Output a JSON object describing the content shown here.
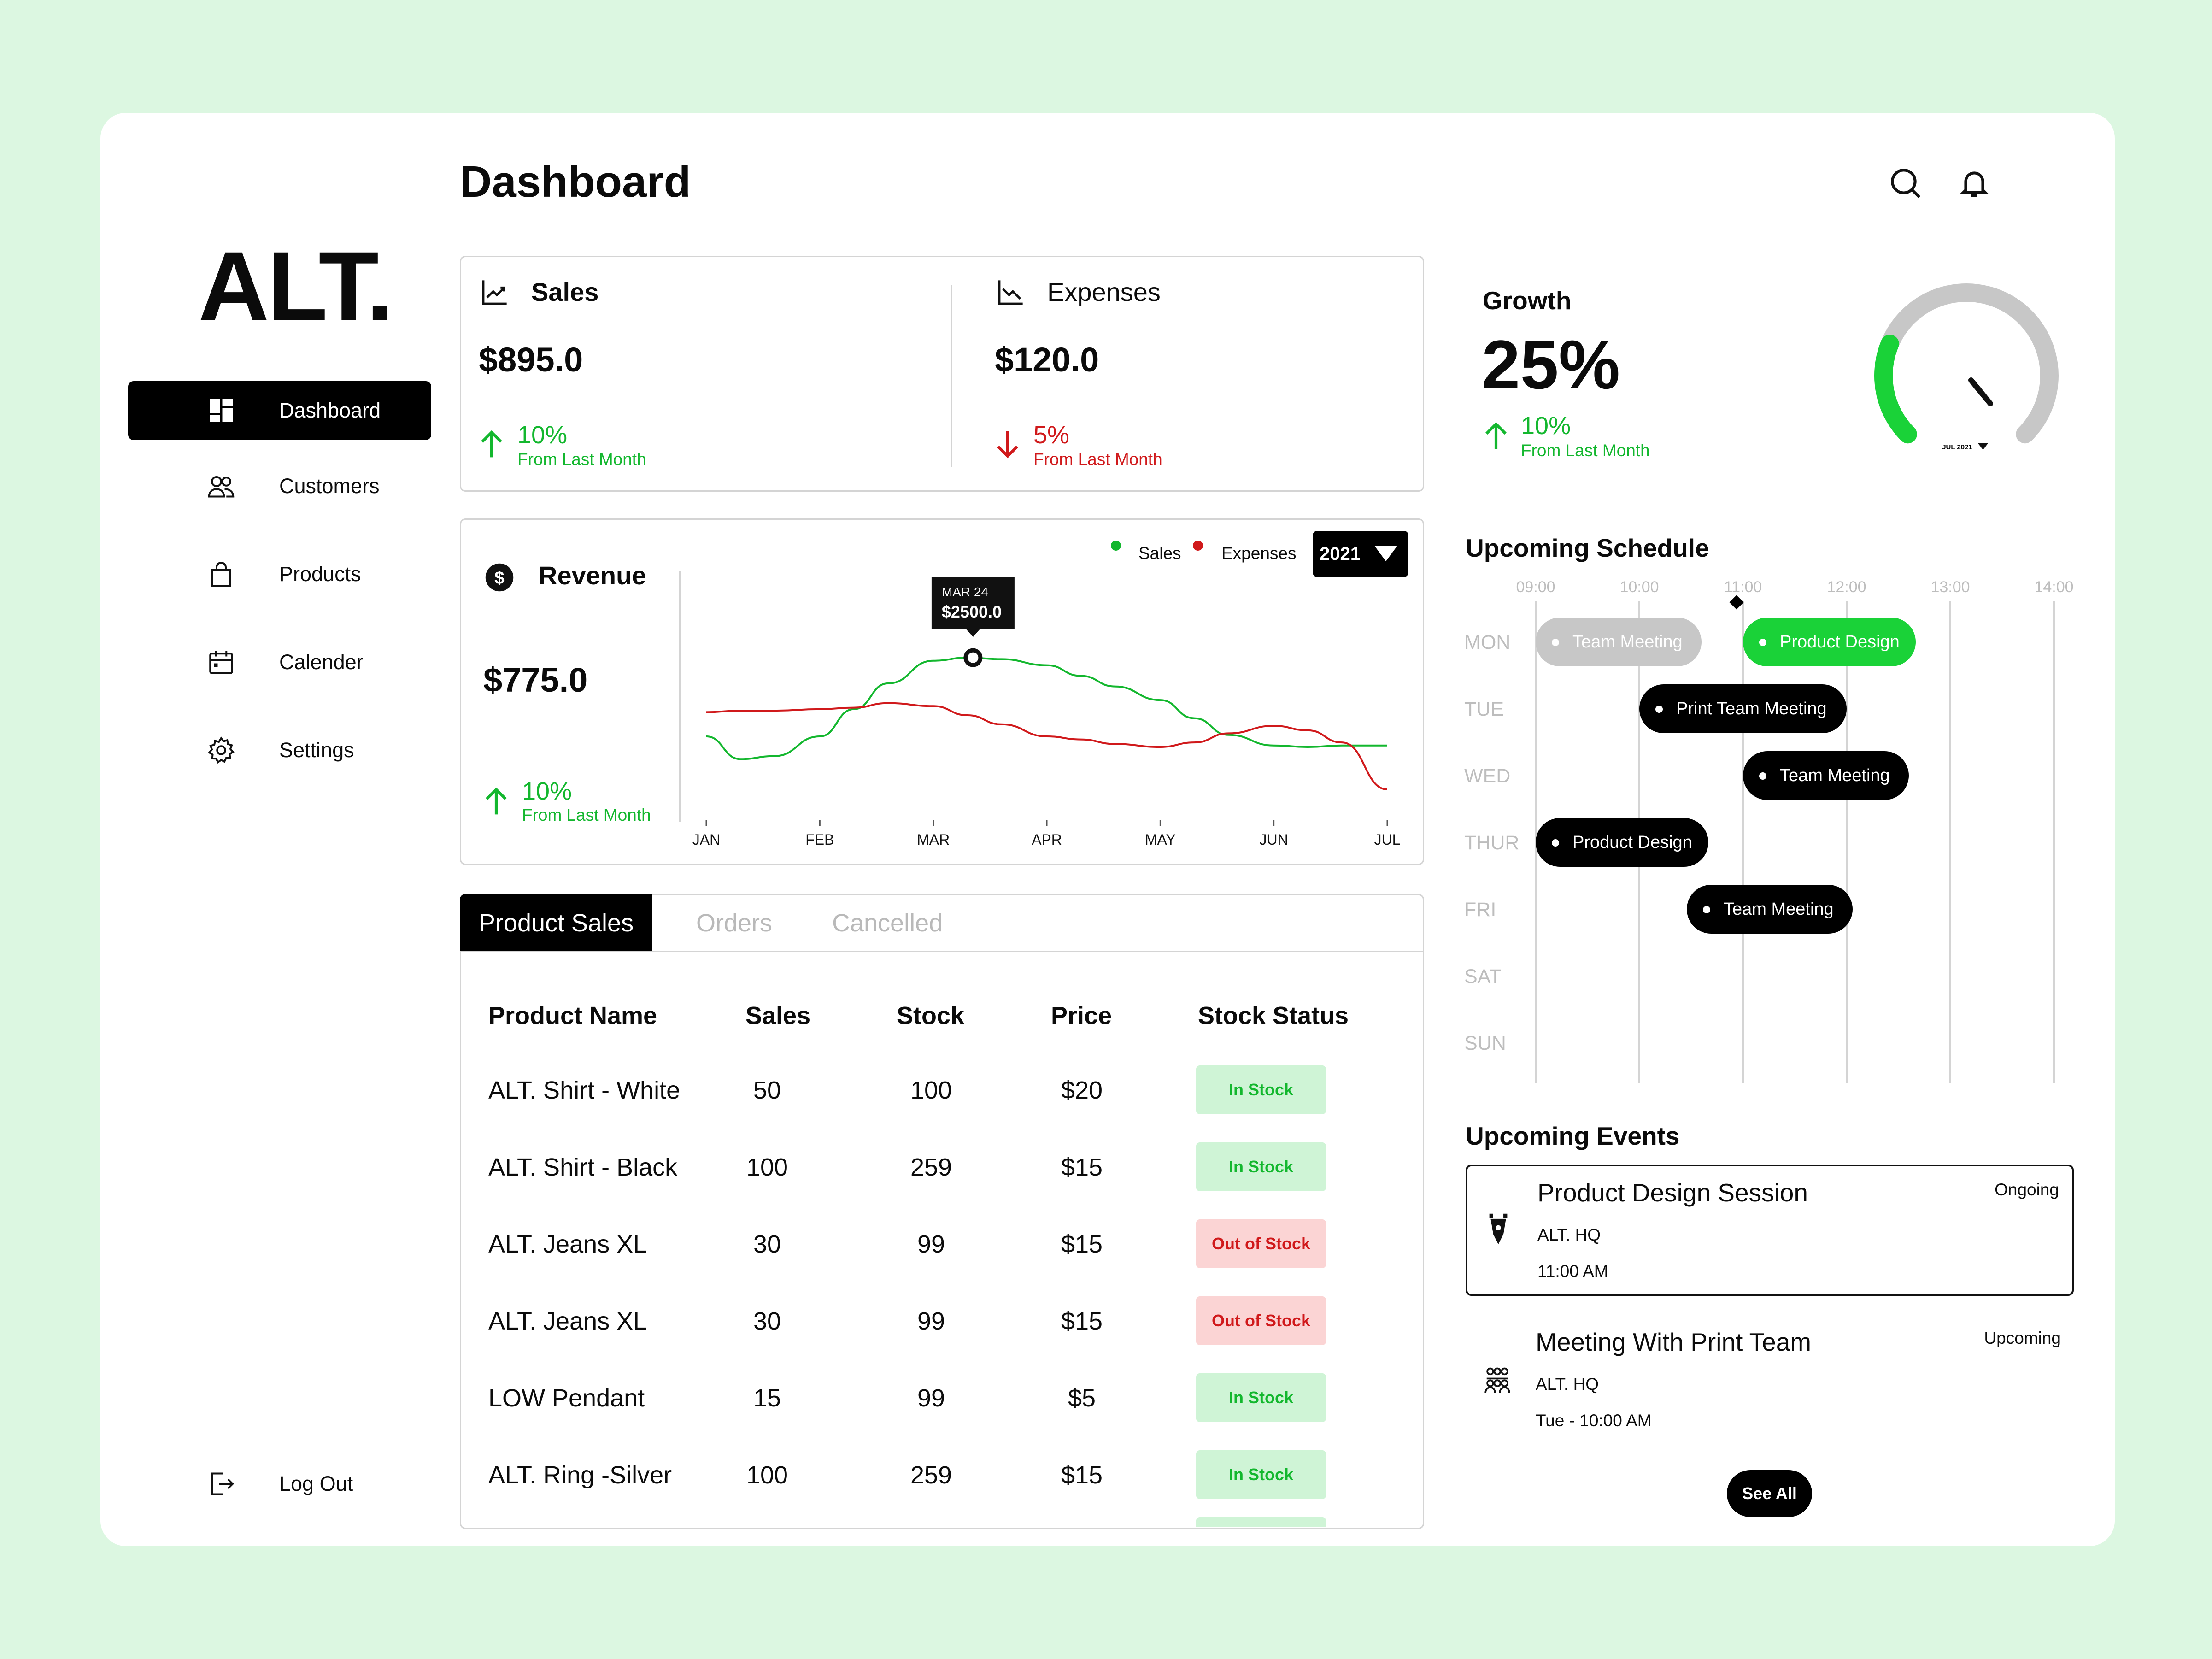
{
  "app": {
    "logo": "ALT.",
    "page_title": "Dashboard"
  },
  "sidebar": {
    "items": [
      {
        "label": "Dashboard",
        "icon": "dashboard-grid-icon",
        "active": true
      },
      {
        "label": "Customers",
        "icon": "users-icon"
      },
      {
        "label": "Products",
        "icon": "shopping-bag-icon"
      },
      {
        "label": "Calender",
        "icon": "calendar-icon"
      },
      {
        "label": "Settings",
        "icon": "gear-icon"
      }
    ],
    "logout": "Log Out"
  },
  "sales": {
    "title": "Sales",
    "value": "$895.0",
    "change": "10%",
    "note": "From Last Month"
  },
  "expenses": {
    "title": "Expenses",
    "value": "$120.0",
    "change": "5%",
    "note": "From Last Month"
  },
  "growth": {
    "title": "Growth",
    "value": "25%",
    "change": "10%",
    "note": "From Last Month",
    "gauge_label": "JUL 2021",
    "gauge_fraction": 0.25
  },
  "revenue": {
    "title": "Revenue",
    "value": "$775.0",
    "change": "10%",
    "note": "From Last Month",
    "year": "2021",
    "legend_sales": "Sales",
    "legend_expenses": "Expenses",
    "tooltip_date": "MAR 24",
    "tooltip_value": "$2500.0"
  },
  "chart_data": {
    "type": "line",
    "categories": [
      "JAN",
      "FEB",
      "MAR",
      "APR",
      "MAY",
      "JUN",
      "JUL"
    ],
    "series": [
      {
        "name": "Sales",
        "color": "#13b72e",
        "points": [
          [
            0,
            70
          ],
          [
            0.3,
            55
          ],
          [
            0.6,
            57
          ],
          [
            1,
            70
          ],
          [
            1.3,
            88
          ],
          [
            1.6,
            105
          ],
          [
            2,
            120
          ],
          [
            2.3,
            122
          ],
          [
            2.6,
            121
          ],
          [
            3,
            117
          ],
          [
            3.3,
            110
          ],
          [
            3.6,
            103
          ],
          [
            4,
            94
          ],
          [
            4.3,
            82
          ],
          [
            4.6,
            71
          ],
          [
            5,
            64
          ],
          [
            5.3,
            63
          ],
          [
            5.6,
            64
          ],
          [
            6,
            64
          ]
        ]
      },
      {
        "name": "Expenses",
        "color": "#d0191b",
        "points": [
          [
            0,
            86
          ],
          [
            0.3,
            87
          ],
          [
            0.6,
            87
          ],
          [
            1,
            88
          ],
          [
            1.3,
            89
          ],
          [
            1.6,
            92
          ],
          [
            2,
            90
          ],
          [
            2.3,
            84
          ],
          [
            2.6,
            78
          ],
          [
            3,
            70
          ],
          [
            3.3,
            68
          ],
          [
            3.6,
            65
          ],
          [
            4,
            63
          ],
          [
            4.3,
            66
          ],
          [
            4.6,
            72
          ],
          [
            5,
            77
          ],
          [
            5.3,
            74
          ],
          [
            5.6,
            66
          ],
          [
            6,
            35
          ]
        ]
      }
    ],
    "ylim": [
      0,
      140
    ],
    "tooltip_at": [
      2.35,
      122
    ]
  },
  "tabs": [
    "Product Sales",
    "Orders",
    "Cancelled"
  ],
  "table": {
    "headers": [
      "Product Name",
      "Sales",
      "Stock",
      "Price",
      "Stock Status"
    ],
    "rows": [
      {
        "name": "ALT. Shirt - White",
        "sales": "50",
        "stock": "100",
        "price": "$20",
        "status": "In Stock",
        "in": true
      },
      {
        "name": "ALT. Shirt - Black",
        "sales": "100",
        "stock": "259",
        "price": "$15",
        "status": "In Stock",
        "in": true
      },
      {
        "name": "ALT. Jeans XL",
        "sales": "30",
        "stock": "99",
        "price": "$15",
        "status": "Out of Stock",
        "in": false
      },
      {
        "name": "ALT. Jeans XL",
        "sales": "30",
        "stock": "99",
        "price": "$15",
        "status": "Out of Stock",
        "in": false
      },
      {
        "name": "LOW Pendant",
        "sales": "15",
        "stock": "99",
        "price": "$5",
        "status": "In Stock",
        "in": true
      },
      {
        "name": "ALT. Ring -Silver",
        "sales": "100",
        "stock": "259",
        "price": "$15",
        "status": "In Stock",
        "in": true
      }
    ]
  },
  "schedule": {
    "title": "Upcoming Schedule",
    "hours": [
      "09:00",
      "10:00",
      "11:00",
      "12:00",
      "13:00",
      "14:00"
    ],
    "days": [
      "MON",
      "TUE",
      "WED",
      "THUR",
      "FRI",
      "SAT",
      "SUN"
    ],
    "events": [
      {
        "label": "Team Meeting",
        "style": "grey"
      },
      {
        "label": "Product Design",
        "style": "green"
      },
      {
        "label": "Print Team Meeting",
        "style": "black"
      },
      {
        "label": "Team Meeting",
        "style": "black"
      },
      {
        "label": "Product Design",
        "style": "black"
      },
      {
        "label": "Team Meeting",
        "style": "black"
      }
    ]
  },
  "events": {
    "title": "Upcoming Events",
    "items": [
      {
        "title": "Product Design Session",
        "place": "ALT. HQ",
        "time": "11:00 AM",
        "status": "Ongoing",
        "icon": "pen-nib-icon"
      },
      {
        "title": "Meeting With Print Team",
        "place": "ALT. HQ",
        "time": "Tue - 10:00 AM",
        "status": "Upcoming",
        "icon": "team-icon"
      }
    ],
    "see_all": "See All"
  },
  "colors": {
    "green": "#13b72e",
    "red": "#d0191b",
    "bright_green": "#1ad238",
    "background": "#dcf7e1"
  }
}
